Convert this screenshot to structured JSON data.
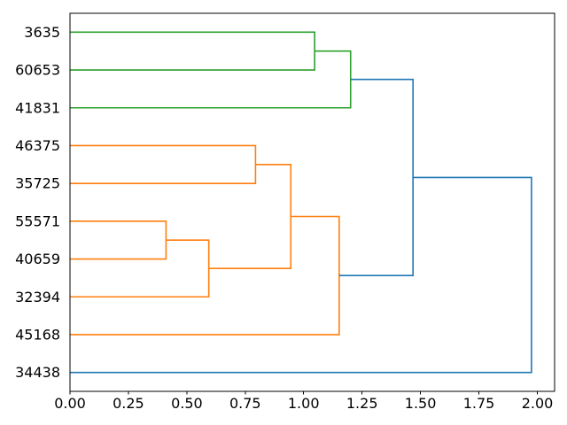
{
  "chart_data": {
    "type": "dendrogram",
    "orientation": "right",
    "title": "",
    "xlabel": "",
    "ylabel": "",
    "grid": false,
    "leaf_labels": [
      "3635",
      "60653",
      "41831",
      "46375",
      "35725",
      "55571",
      "40659",
      "32394",
      "45168",
      "34438"
    ],
    "merges": [
      {
        "id": "m1",
        "a": "55571",
        "b": "40659",
        "distance": 0.411,
        "color": "#ff7f0e"
      },
      {
        "id": "m2",
        "a": "m1",
        "b": "32394",
        "distance": 0.594,
        "color": "#ff7f0e"
      },
      {
        "id": "m3",
        "a": "46375",
        "b": "35725",
        "distance": 0.794,
        "color": "#ff7f0e"
      },
      {
        "id": "m4",
        "a": "m3",
        "b": "m2",
        "distance": 0.945,
        "color": "#ff7f0e"
      },
      {
        "id": "m5",
        "a": "3635",
        "b": "60653",
        "distance": 1.047,
        "color": "#2ca02c"
      },
      {
        "id": "m6",
        "a": "m4",
        "b": "45168",
        "distance": 1.152,
        "color": "#ff7f0e"
      },
      {
        "id": "m7",
        "a": "m5",
        "b": "41831",
        "distance": 1.201,
        "color": "#2ca02c"
      },
      {
        "id": "m8",
        "a": "m7",
        "b": "m6",
        "distance": 1.468,
        "color": "#1f77b4"
      },
      {
        "id": "m9",
        "a": "m8",
        "b": "34438",
        "distance": 1.975,
        "color": "#1f77b4"
      }
    ],
    "x_axis": {
      "tick_labels": [
        "0.00",
        "0.25",
        "0.50",
        "0.75",
        "1.00",
        "1.25",
        "1.50",
        "1.75",
        "2.00"
      ],
      "tick_values": [
        0,
        0.25,
        0.5,
        0.75,
        1.0,
        1.25,
        1.5,
        1.75,
        2.0
      ],
      "lim": [
        0,
        2.074
      ]
    },
    "cluster_colors": {
      "orange": "#ff7f0e",
      "green": "#2ca02c",
      "above_threshold_blue": "#1f77b4"
    },
    "axis_color": "#000000",
    "text_color": "#000000",
    "background": "#ffffff"
  }
}
